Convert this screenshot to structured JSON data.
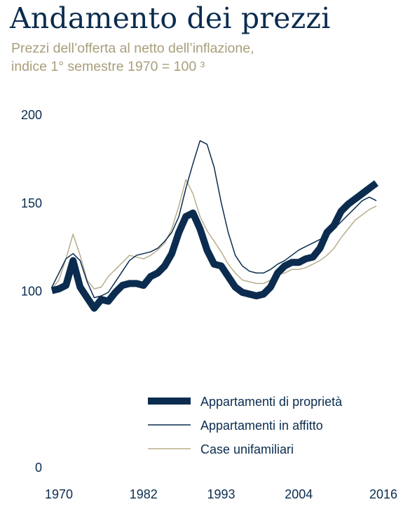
{
  "chart_data": {
    "type": "line",
    "title": "Andamento dei prezzi",
    "subtitle_line1": "Prezzi dell’offerta al netto dell’inflazione,",
    "subtitle_line2": "indice 1° semestre 1970 = 100 ³",
    "xlabel": "",
    "ylabel": "",
    "xlim": [
      1970,
      2018
    ],
    "ylim": [
      0,
      200
    ],
    "yticks": [
      0,
      100,
      150,
      200
    ],
    "xticks": [
      1970,
      1982,
      1993,
      2004,
      2016
    ],
    "grid": false,
    "legend_position": "bottom-right",
    "series": [
      {
        "name": "Appartamenti di proprietà",
        "color": "#0b2c4f",
        "width": 10,
        "points": [
          [
            1970,
            100
          ],
          [
            1971,
            101
          ],
          [
            1972,
            103
          ],
          [
            1973,
            117
          ],
          [
            1974,
            102
          ],
          [
            1975,
            96
          ],
          [
            1976,
            90
          ],
          [
            1977,
            95
          ],
          [
            1978,
            94
          ],
          [
            1979,
            99
          ],
          [
            1980,
            103
          ],
          [
            1981,
            104
          ],
          [
            1982,
            104
          ],
          [
            1983,
            103
          ],
          [
            1984,
            108
          ],
          [
            1985,
            110
          ],
          [
            1986,
            114
          ],
          [
            1987,
            121
          ],
          [
            1988,
            133
          ],
          [
            1989,
            142
          ],
          [
            1990,
            144
          ],
          [
            1991,
            135
          ],
          [
            1992,
            123
          ],
          [
            1993,
            115
          ],
          [
            1994,
            114
          ],
          [
            1995,
            108
          ],
          [
            1996,
            102
          ],
          [
            1997,
            99
          ],
          [
            1998,
            98
          ],
          [
            1999,
            97
          ],
          [
            2000,
            98
          ],
          [
            2001,
            102
          ],
          [
            2002,
            110
          ],
          [
            2003,
            114
          ],
          [
            2004,
            116
          ],
          [
            2005,
            116
          ],
          [
            2006,
            118
          ],
          [
            2007,
            119
          ],
          [
            2008,
            124
          ],
          [
            2009,
            133
          ],
          [
            2010,
            137
          ],
          [
            2011,
            145
          ],
          [
            2012,
            149
          ],
          [
            2013,
            152
          ],
          [
            2014,
            155
          ],
          [
            2015,
            158
          ],
          [
            2016,
            161
          ]
        ]
      },
      {
        "name": "Appartamenti in affitto",
        "color": "#0b2c4f",
        "width": 1.5,
        "points": [
          [
            1970,
            102
          ],
          [
            1971,
            110
          ],
          [
            1972,
            118
          ],
          [
            1973,
            121
          ],
          [
            1974,
            117
          ],
          [
            1975,
            105
          ],
          [
            1976,
            96
          ],
          [
            1977,
            97
          ],
          [
            1978,
            99
          ],
          [
            1979,
            105
          ],
          [
            1980,
            111
          ],
          [
            1981,
            117
          ],
          [
            1982,
            120
          ],
          [
            1983,
            121
          ],
          [
            1984,
            122
          ],
          [
            1985,
            124
          ],
          [
            1986,
            128
          ],
          [
            1987,
            133
          ],
          [
            1988,
            142
          ],
          [
            1989,
            158
          ],
          [
            1990,
            172
          ],
          [
            1991,
            185
          ],
          [
            1992,
            183
          ],
          [
            1993,
            170
          ],
          [
            1994,
            150
          ],
          [
            1995,
            133
          ],
          [
            1996,
            120
          ],
          [
            1997,
            114
          ],
          [
            1998,
            111
          ],
          [
            1999,
            110
          ],
          [
            2000,
            110
          ],
          [
            2001,
            112
          ],
          [
            2002,
            115
          ],
          [
            2003,
            117
          ],
          [
            2004,
            120
          ],
          [
            2005,
            123
          ],
          [
            2006,
            125
          ],
          [
            2007,
            127
          ],
          [
            2008,
            129
          ],
          [
            2009,
            131
          ],
          [
            2010,
            135
          ],
          [
            2011,
            139
          ],
          [
            2012,
            143
          ],
          [
            2013,
            147
          ],
          [
            2014,
            151
          ],
          [
            2015,
            153
          ],
          [
            2016,
            151
          ]
        ]
      },
      {
        "name": "Case unifamiliari",
        "color": "#b8ae8b",
        "width": 1.5,
        "points": [
          [
            1970,
            101
          ],
          [
            1971,
            106
          ],
          [
            1972,
            118
          ],
          [
            1973,
            132
          ],
          [
            1974,
            120
          ],
          [
            1975,
            106
          ],
          [
            1976,
            101
          ],
          [
            1977,
            102
          ],
          [
            1978,
            108
          ],
          [
            1979,
            112
          ],
          [
            1980,
            116
          ],
          [
            1981,
            120
          ],
          [
            1982,
            119
          ],
          [
            1983,
            118
          ],
          [
            1984,
            120
          ],
          [
            1985,
            123
          ],
          [
            1986,
            127
          ],
          [
            1987,
            135
          ],
          [
            1988,
            148
          ],
          [
            1989,
            163
          ],
          [
            1990,
            155
          ],
          [
            1991,
            142
          ],
          [
            1992,
            134
          ],
          [
            1993,
            128
          ],
          [
            1994,
            122
          ],
          [
            1995,
            115
          ],
          [
            1996,
            110
          ],
          [
            1997,
            106
          ],
          [
            1998,
            105
          ],
          [
            1999,
            104
          ],
          [
            2000,
            104
          ],
          [
            2001,
            106
          ],
          [
            2002,
            109
          ],
          [
            2003,
            110
          ],
          [
            2004,
            112
          ],
          [
            2005,
            112
          ],
          [
            2006,
            113
          ],
          [
            2007,
            115
          ],
          [
            2008,
            117
          ],
          [
            2009,
            120
          ],
          [
            2010,
            124
          ],
          [
            2011,
            130
          ],
          [
            2012,
            135
          ],
          [
            2013,
            140
          ],
          [
            2014,
            143
          ],
          [
            2015,
            146
          ],
          [
            2016,
            148
          ]
        ]
      }
    ]
  }
}
